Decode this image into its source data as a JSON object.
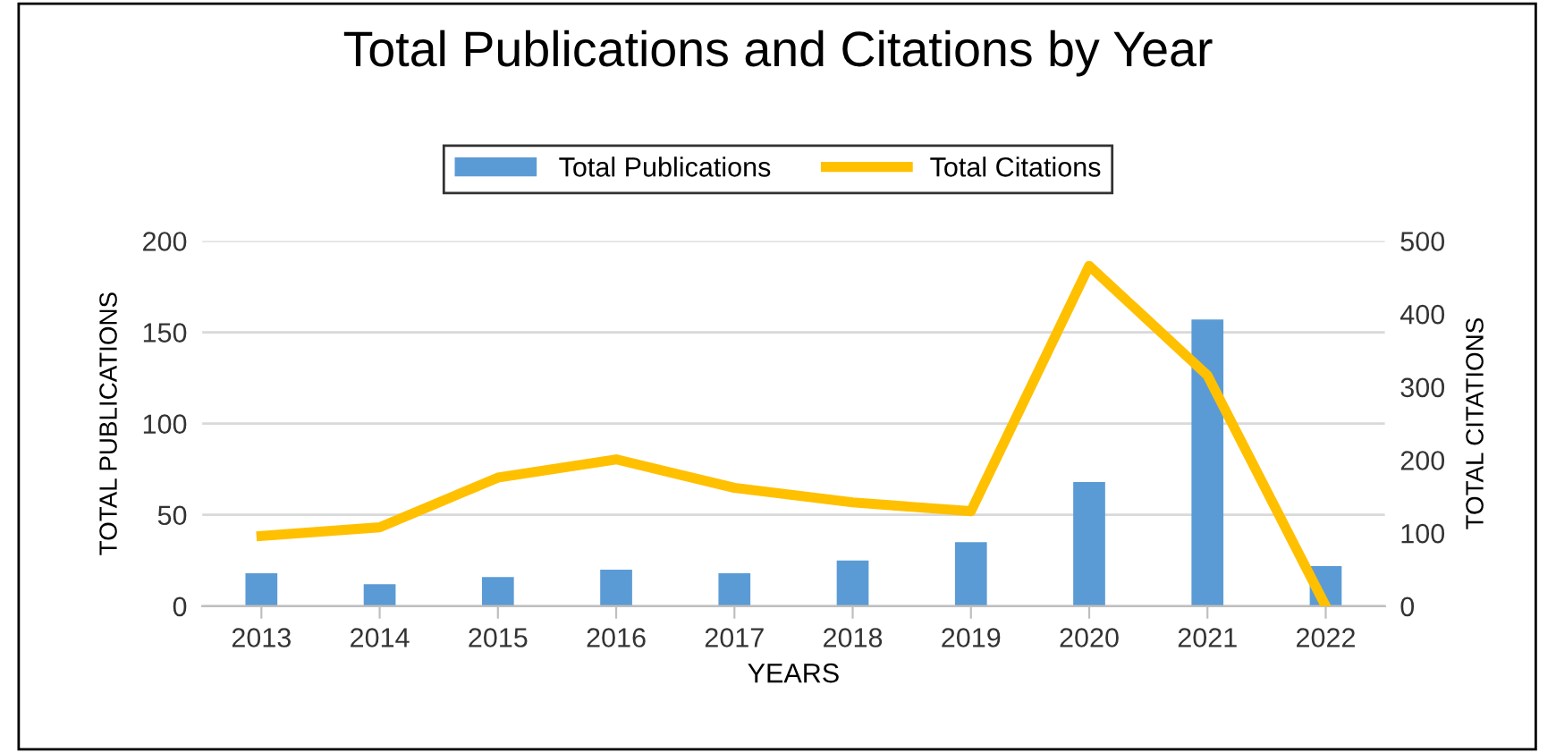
{
  "chart_data": {
    "type": "bar",
    "title": "Total Publications and Citations by Year",
    "xlabel": "YEARS",
    "ylabel": "TOTAL PUBLICATIONS",
    "y2label": "TOTAL CITATIONS",
    "categories": [
      "2013",
      "2014",
      "2015",
      "2016",
      "2017",
      "2018",
      "2019",
      "2020",
      "2021",
      "2022"
    ],
    "series": [
      {
        "name": "Total Publications",
        "color": "#5b9bd5",
        "values": [
          18,
          12,
          16,
          20,
          18,
          25,
          35,
          68,
          157,
          22
        ]
      },
      {
        "name": "Total Citations",
        "type": "line",
        "axis": "y2",
        "color": "#ffc000",
        "values": [
          96,
          108,
          176,
          201,
          162,
          142,
          130,
          466,
          316,
          0
        ]
      }
    ],
    "ylim": [
      0,
      200
    ],
    "yticks": [
      0,
      50,
      100,
      150,
      200
    ],
    "y2lim": [
      0,
      500
    ],
    "y2ticks": [
      0,
      100,
      200,
      300,
      400,
      500
    ],
    "grid": "y",
    "legend": "top",
    "marker": "none",
    "line_style": "solid"
  }
}
